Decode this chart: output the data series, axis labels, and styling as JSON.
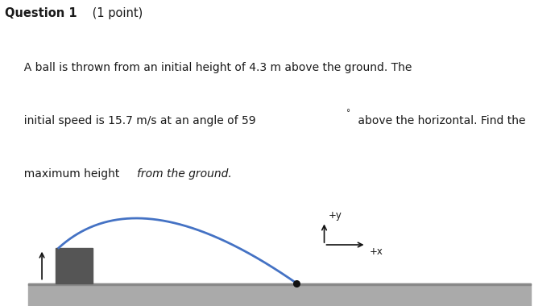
{
  "title_bold": "Question 1",
  "title_normal": " (1 point)",
  "body_line1": "  A ball is thrown from an initial height of 4.3 m above the ground. The",
  "body_line2_pre": "  initial speed is 15.7 m/s at an angle of 59",
  "body_line2_deg": "°",
  "body_line2_post": " above the horizontal. Find the",
  "body_line3_normal": "  maximum height ",
  "body_line3_italic": "from the ground.",
  "axis_label_y": "+y",
  "axis_label_x": "+x",
  "ground_color": "#aaaaaa",
  "ground_top_color": "#888888",
  "block_color": "#555555",
  "arc_color": "#4472c4",
  "ball_color": "#111111",
  "background_color": "#ffffff",
  "arrow_color": "#111111",
  "text_color": "#1a1a1a",
  "title_fontsize": 10.5,
  "body_fontsize": 10.0
}
